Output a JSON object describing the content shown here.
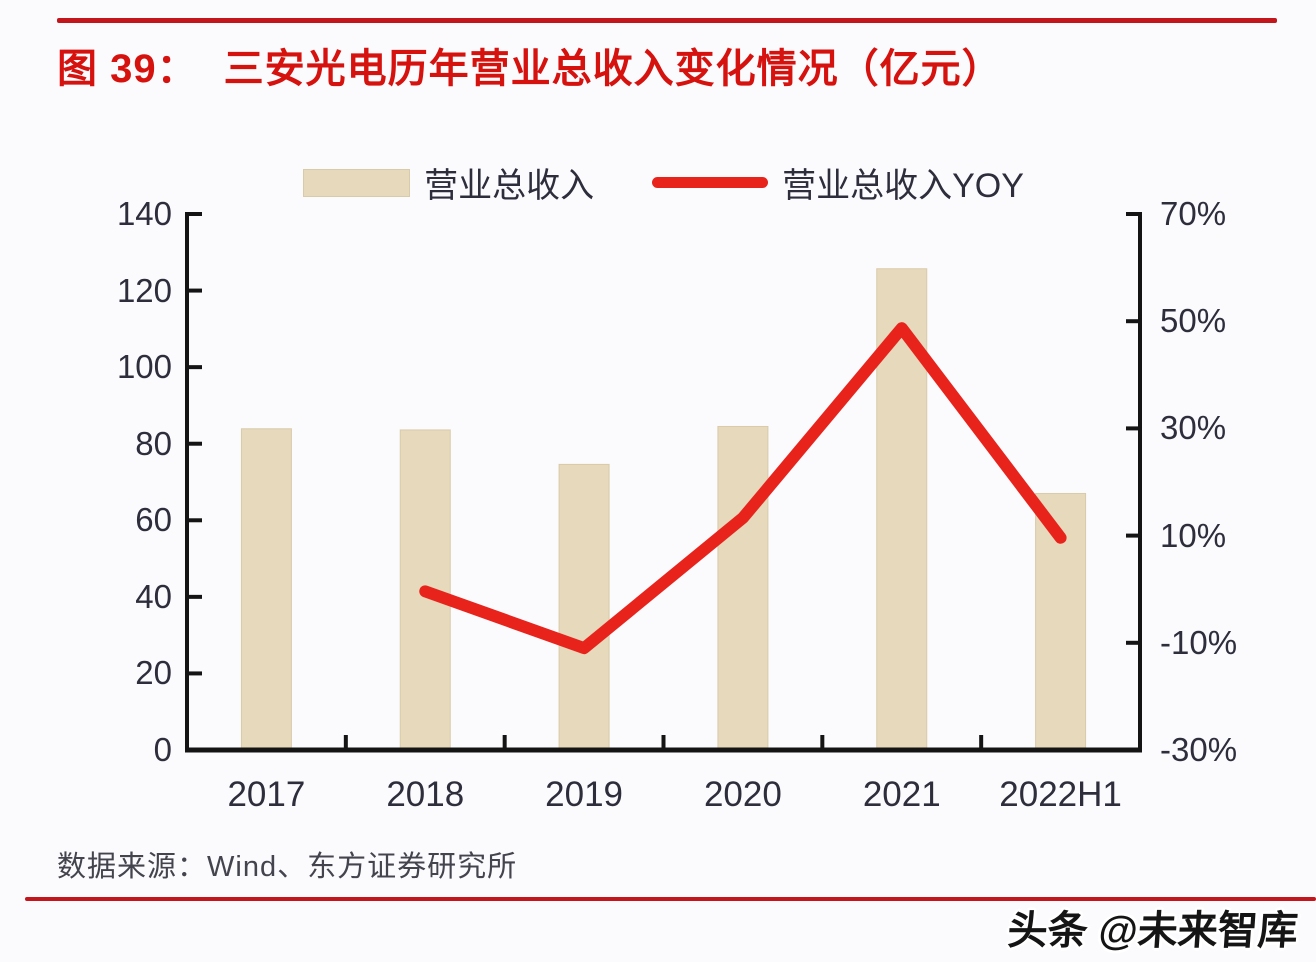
{
  "page": {
    "figure_label": "图 39：",
    "title": "三安光电历年营业总收入变化情况（亿元）",
    "source": "数据来源：Wind、东方证券研究所",
    "watermark": "头条 @未来智库"
  },
  "colors": {
    "title_red": "#d6120f",
    "rule_red": "#c3161c",
    "bar_fill": "#e6d9bc",
    "line_red": "#e8231c",
    "axis_black": "#141414",
    "label_dark": "#2d2d3c"
  },
  "chart_data": {
    "type": "combo",
    "title": "三安光电历年营业总收入变化情况（亿元）",
    "categories": [
      "2017",
      "2018",
      "2019",
      "2020",
      "2021",
      "2022H1"
    ],
    "series": [
      {
        "name": "营业总收入",
        "type": "bar",
        "axis": "left",
        "color": "#e6d9bc",
        "values": [
          83.9,
          83.6,
          74.6,
          84.5,
          125.7,
          67.0
        ]
      },
      {
        "name": "营业总收入YOY",
        "type": "line",
        "axis": "right",
        "color": "#e8231c",
        "unit": "%",
        "values": [
          null,
          -0.4,
          -11.0,
          13.3,
          48.7,
          9.6
        ]
      }
    ],
    "left_axis": {
      "lim": [
        0,
        140
      ],
      "tick_values": [
        0,
        20,
        40,
        60,
        80,
        100,
        120,
        140
      ],
      "tick_labels": [
        "0",
        "20",
        "40",
        "60",
        "80",
        "100",
        "120",
        "140"
      ]
    },
    "right_axis": {
      "lim": [
        -30,
        70
      ],
      "tick_values": [
        -30,
        -10,
        10,
        30,
        50,
        70
      ],
      "tick_labels": [
        "-30%",
        "-10%",
        "10%",
        "30%",
        "50%",
        "70%"
      ]
    },
    "grid": false,
    "legend_position": "top-center"
  }
}
